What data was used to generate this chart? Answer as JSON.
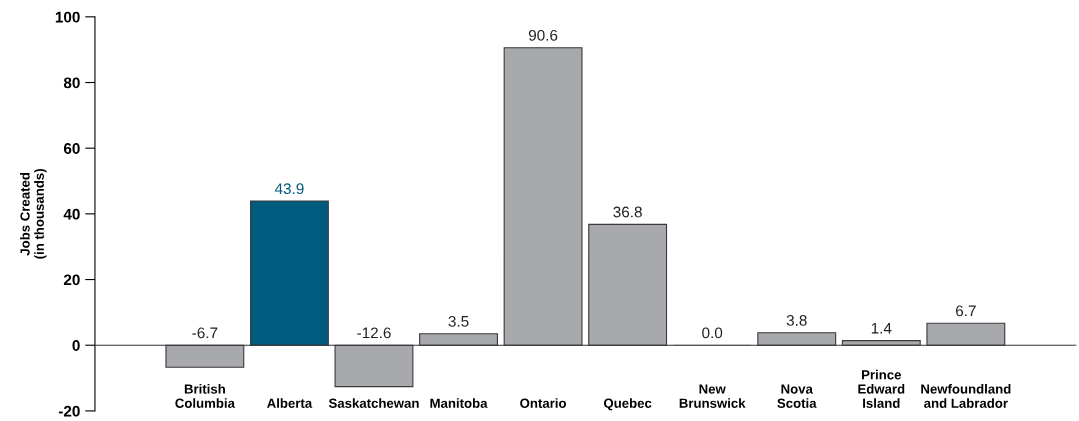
{
  "chart_data": {
    "type": "bar",
    "ylabel": "Jobs Created\n(in thousands)",
    "categories": [
      "British\nColumbia",
      "Alberta",
      "Saskatchewan",
      "Manitoba",
      "Ontario",
      "Quebec",
      "New\nBrunswick",
      "Nova\nScotia",
      "Prince\nEdward\nIsland",
      "Newfoundland\nand Labrador"
    ],
    "values": [
      -6.7,
      43.9,
      -12.6,
      3.5,
      90.6,
      36.8,
      0.0,
      3.8,
      1.4,
      6.7
    ],
    "colors": [
      "#a7a9ac",
      "#005b7f",
      "#a7a9ac",
      "#a7a9ac",
      "#a7a9ac",
      "#a7a9ac",
      "#a7a9ac",
      "#a7a9ac",
      "#a7a9ac",
      "#a7a9ac"
    ],
    "value_labels": [
      "-6.7",
      "43.9",
      "-12.6",
      "3.5",
      "90.6",
      "36.8",
      "0.0",
      "3.8",
      "1.4",
      "6.7"
    ],
    "ylim": [
      -20,
      100
    ],
    "yticks": [
      -20,
      0,
      20,
      40,
      60,
      80,
      100
    ]
  }
}
